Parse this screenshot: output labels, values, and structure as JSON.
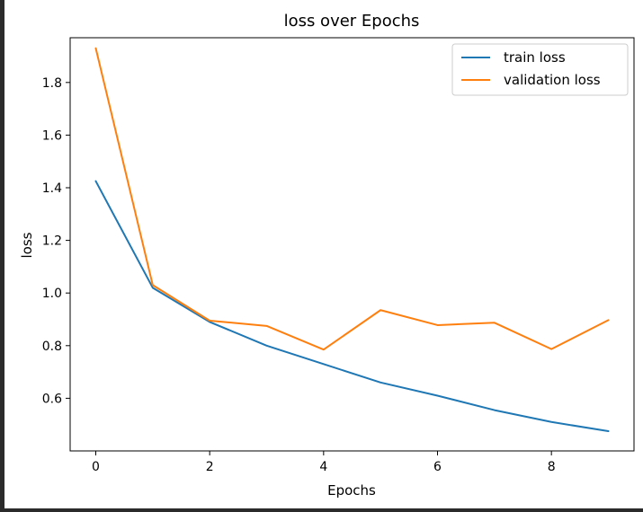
{
  "chart_data": {
    "type": "line",
    "title": "loss over Epochs",
    "xlabel": "Epochs",
    "ylabel": "loss",
    "x": [
      0,
      1,
      2,
      3,
      4,
      5,
      6,
      7,
      8,
      9
    ],
    "xticks": [
      "0",
      "2",
      "4",
      "6",
      "8"
    ],
    "yticks": [
      "0.6",
      "0.8",
      "1.0",
      "1.2",
      "1.4",
      "1.6",
      "1.8"
    ],
    "xlim": [
      -0.45,
      9.45
    ],
    "ylim": [
      0.4,
      1.97
    ],
    "grid": false,
    "legend_position": "top-right",
    "series": [
      {
        "name": "train loss",
        "color": "#1f77b4",
        "values": [
          1.425,
          1.02,
          0.89,
          0.8,
          0.73,
          0.66,
          0.61,
          0.555,
          0.51,
          0.475
        ]
      },
      {
        "name": "validation loss",
        "color": "#ff7f0e",
        "values": [
          1.93,
          1.03,
          0.895,
          0.875,
          0.785,
          0.935,
          0.878,
          0.887,
          0.787,
          0.897
        ]
      }
    ]
  }
}
